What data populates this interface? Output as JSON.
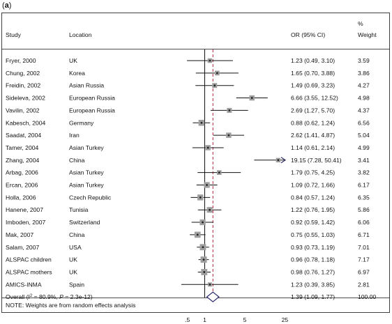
{
  "panel_label": "a",
  "header": {
    "study": "Study",
    "location": "Location",
    "or_ci": "OR (95% CI)",
    "pct": "%",
    "weight": "Weight"
  },
  "footnote": "NOTE: Weights are from random effects analysis",
  "colors": {
    "box": "#9e9e9e",
    "line": "#111111",
    "overall": "#2b2b6b",
    "dashed": "#b02040"
  },
  "chart_data": {
    "type": "forest",
    "x_scale": "log",
    "xlim": [
      0.3,
      50
    ],
    "x_ticks": [
      0.5,
      1,
      5,
      25
    ],
    "x_tick_labels": [
      ".5",
      "1",
      "5",
      "25"
    ],
    "null_line": 1,
    "pooled_line": 1.39,
    "studies": [
      {
        "study": "Fryer, 2000",
        "location": "UK",
        "or": 1.23,
        "lo": 0.49,
        "hi": 3.1,
        "label": "1.23 (0.49, 3.10)",
        "weight": "3.59"
      },
      {
        "study": "Chung, 2002",
        "location": "Korea",
        "or": 1.65,
        "lo": 0.7,
        "hi": 3.88,
        "label": "1.65 (0.70, 3.88)",
        "weight": "3.86"
      },
      {
        "study": "Freidin, 2002",
        "location": "Asian Russia",
        "or": 1.49,
        "lo": 0.69,
        "hi": 3.23,
        "label": "1.49 (0.69, 3.23)",
        "weight": "4.27"
      },
      {
        "study": "Sideleva, 2002",
        "location": "European Russia",
        "or": 6.66,
        "lo": 3.55,
        "hi": 12.52,
        "label": "6.66 (3.55, 12.52)",
        "weight": "4.98"
      },
      {
        "study": "Vavilin, 2002",
        "location": "European Russia",
        "or": 2.69,
        "lo": 1.27,
        "hi": 5.7,
        "label": "2.69 (1.27, 5.70)",
        "weight": "4.37"
      },
      {
        "study": "Kabesch, 2004",
        "location": "Germany",
        "or": 0.88,
        "lo": 0.62,
        "hi": 1.24,
        "label": "0.88 (0.62, 1.24)",
        "weight": "6.56"
      },
      {
        "study": "Saadat, 2004",
        "location": "Iran",
        "or": 2.62,
        "lo": 1.41,
        "hi": 4.87,
        "label": "2.62 (1.41, 4.87)",
        "weight": "5.04"
      },
      {
        "study": "Tamer, 2004",
        "location": "Asian Turkey",
        "or": 1.14,
        "lo": 0.61,
        "hi": 2.14,
        "label": "1.14 (0.61, 2.14)",
        "weight": "4.99"
      },
      {
        "study": "Zhang, 2004",
        "location": "China",
        "or": 19.15,
        "lo": 7.28,
        "hi": 50.41,
        "label": "19.15 (7.28, 50.41)",
        "weight": "3.41",
        "arrow": true
      },
      {
        "study": "Arbag, 2006",
        "location": "Asian Turkey",
        "or": 1.79,
        "lo": 0.75,
        "hi": 4.25,
        "label": "1.79 (0.75, 4.25)",
        "weight": "3.82"
      },
      {
        "study": "Ercan, 2006",
        "location": "Asian Turkey",
        "or": 1.09,
        "lo": 0.72,
        "hi": 1.66,
        "label": "1.09 (0.72, 1.66)",
        "weight": "6.17"
      },
      {
        "study": "Holla, 2006",
        "location": "Czech Republic",
        "or": 0.84,
        "lo": 0.57,
        "hi": 1.24,
        "label": "0.84 (0.57, 1.24)",
        "weight": "6.35"
      },
      {
        "study": "Hanene, 2007",
        "location": "Tunisia",
        "or": 1.22,
        "lo": 0.76,
        "hi": 1.95,
        "label": "1.22 (0.76, 1.95)",
        "weight": "5.86"
      },
      {
        "study": "Imboden, 2007",
        "location": "Switzerland",
        "or": 0.92,
        "lo": 0.59,
        "hi": 1.42,
        "label": "0.92 (0.59, 1.42)",
        "weight": "6.06"
      },
      {
        "study": "Mak, 2007",
        "location": "China",
        "or": 0.75,
        "lo": 0.55,
        "hi": 1.03,
        "label": "0.75 (0.55, 1.03)",
        "weight": "6.71"
      },
      {
        "study": "Salam, 2007",
        "location": "USA",
        "or": 0.93,
        "lo": 0.73,
        "hi": 1.19,
        "label": "0.93 (0.73, 1.19)",
        "weight": "7.01"
      },
      {
        "study": "ALSPAC children",
        "location": "UK",
        "or": 0.96,
        "lo": 0.78,
        "hi": 1.18,
        "label": "0.96 (0.78, 1.18)",
        "weight": "7.17"
      },
      {
        "study": "ALSPAC mothers",
        "location": "UK",
        "or": 0.98,
        "lo": 0.76,
        "hi": 1.27,
        "label": "0.98 (0.76, 1.27)",
        "weight": "6.97"
      },
      {
        "study": "AMICS-INMA",
        "location": "Spain",
        "or": 1.23,
        "lo": 0.39,
        "hi": 3.85,
        "label": "1.23 (0.39, 3.85)",
        "weight": "2.81"
      }
    ],
    "overall": {
      "study_prefix": "Overall  (I",
      "study_sup": "2",
      "study_mid": " = 80.9%, ",
      "p_symbol": "P",
      "study_suffix": " = 2.3e-12)",
      "or": 1.39,
      "lo": 1.09,
      "hi": 1.77,
      "label": "1.39 (1.09, 1.77)",
      "weight": "100.00"
    }
  }
}
